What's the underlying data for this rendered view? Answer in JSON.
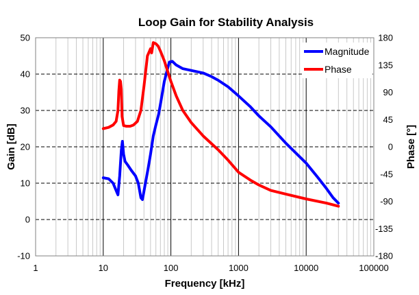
{
  "chart_data": {
    "type": "line",
    "title": "Loop Gain for Stability Analysis",
    "xlabel": "Frequency [kHz]",
    "ylabel": "Gain [dB]",
    "y2label": "Phase [°]",
    "xscale": "log",
    "xlim": [
      1,
      100000
    ],
    "ylim": [
      -10,
      50
    ],
    "y2lim": [
      -180,
      180
    ],
    "grid": true,
    "legend": "top-right",
    "x_ticks": [
      "1",
      "10",
      "100",
      "1000",
      "10000",
      "100000"
    ],
    "y_ticks": [
      "-10",
      "0",
      "10",
      "20",
      "30",
      "40",
      "50"
    ],
    "y2_ticks": [
      "-180",
      "-135",
      "-90",
      "-45",
      "0",
      "45",
      "90",
      "135",
      "180"
    ],
    "series": [
      {
        "name": "Magnitude",
        "axis": "left",
        "color": "#0000ff",
        "points": [
          [
            10,
            11.5
          ],
          [
            12,
            11.2
          ],
          [
            14,
            10
          ],
          [
            15.5,
            8
          ],
          [
            16.5,
            6.8
          ],
          [
            17.5,
            12
          ],
          [
            18.5,
            19
          ],
          [
            19.2,
            21.5
          ],
          [
            20,
            18
          ],
          [
            21,
            16
          ],
          [
            23,
            15
          ],
          [
            26,
            13.5
          ],
          [
            30,
            12
          ],
          [
            33,
            10
          ],
          [
            36,
            6
          ],
          [
            38,
            5.5
          ],
          [
            42,
            10
          ],
          [
            46,
            14
          ],
          [
            50,
            18
          ],
          [
            55,
            23
          ],
          [
            60,
            26
          ],
          [
            66,
            29
          ],
          [
            72,
            33
          ],
          [
            80,
            38
          ],
          [
            88,
            41
          ],
          [
            95,
            43.3
          ],
          [
            105,
            43.5
          ],
          [
            120,
            42.5
          ],
          [
            150,
            41.5
          ],
          [
            200,
            41
          ],
          [
            300,
            40.3
          ],
          [
            400,
            39.3
          ],
          [
            500,
            38.3
          ],
          [
            700,
            36.5
          ],
          [
            1000,
            34
          ],
          [
            1500,
            31
          ],
          [
            2000,
            28.5
          ],
          [
            3000,
            25.5
          ],
          [
            5000,
            21
          ],
          [
            10000,
            15.5
          ],
          [
            15000,
            11.5
          ],
          [
            20000,
            8.5
          ],
          [
            25000,
            6
          ],
          [
            30000,
            4.5
          ]
        ]
      },
      {
        "name": "Phase",
        "axis": "right",
        "color": "#ff0000",
        "points": [
          [
            10,
            30
          ],
          [
            12,
            32
          ],
          [
            14,
            36
          ],
          [
            15.5,
            42
          ],
          [
            16.5,
            60
          ],
          [
            17,
            92
          ],
          [
            17.5,
            110
          ],
          [
            18,
            108
          ],
          [
            18.5,
            95
          ],
          [
            19,
            50
          ],
          [
            20,
            35
          ],
          [
            22,
            34
          ],
          [
            25,
            34
          ],
          [
            28,
            36
          ],
          [
            32,
            42
          ],
          [
            36,
            60
          ],
          [
            40,
            100
          ],
          [
            45,
            150
          ],
          [
            50,
            162
          ],
          [
            52,
            155
          ],
          [
            55,
            172
          ],
          [
            60,
            170
          ],
          [
            65,
            166
          ],
          [
            70,
            158
          ],
          [
            80,
            142
          ],
          [
            90,
            124
          ],
          [
            100,
            108
          ],
          [
            120,
            84
          ],
          [
            150,
            60
          ],
          [
            200,
            40
          ],
          [
            300,
            18
          ],
          [
            500,
            -5
          ],
          [
            700,
            -22
          ],
          [
            1000,
            -42
          ],
          [
            1500,
            -55
          ],
          [
            2000,
            -63
          ],
          [
            3000,
            -72
          ],
          [
            5000,
            -78
          ],
          [
            10000,
            -86
          ],
          [
            20000,
            -93
          ],
          [
            30000,
            -98
          ]
        ]
      }
    ]
  }
}
